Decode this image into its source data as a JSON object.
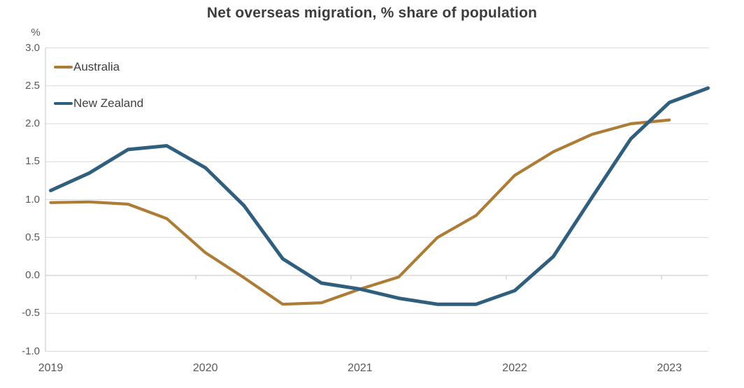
{
  "chart_data": {
    "type": "line",
    "title": "Net overseas migration, % share of population",
    "ylabel": "%",
    "xlabel": "",
    "categories": [
      "2019 Q1",
      "2019 Q2",
      "2019 Q3",
      "2019 Q4",
      "2020 Q1",
      "2020 Q2",
      "2020 Q3",
      "2020 Q4",
      "2021 Q1",
      "2021 Q2",
      "2021 Q3",
      "2021 Q4",
      "2022 Q1",
      "2022 Q2",
      "2022 Q3",
      "2022 Q4",
      "2023 Q1",
      "2023 Q2"
    ],
    "x_year_labels": [
      "2019",
      "2020",
      "2021",
      "2022",
      "2023"
    ],
    "series": [
      {
        "name": "Australia",
        "color": "#ad7d38",
        "values": [
          0.96,
          0.97,
          0.94,
          0.75,
          0.3,
          -0.03,
          -0.38,
          -0.36,
          -0.18,
          -0.02,
          0.5,
          0.79,
          1.32,
          1.63,
          1.86,
          2.0,
          2.05,
          null
        ]
      },
      {
        "name": "New Zealand",
        "color": "#305f7e",
        "values": [
          1.12,
          1.35,
          1.66,
          1.71,
          1.42,
          0.92,
          0.22,
          -0.1,
          -0.18,
          -0.3,
          -0.38,
          -0.38,
          -0.2,
          0.25,
          1.03,
          1.8,
          2.28,
          2.47
        ]
      }
    ],
    "ylim": [
      -1.0,
      3.0
    ],
    "ytick_step": 0.5,
    "ytick_labels": [
      "3.0",
      "2.5",
      "2.0",
      "1.5",
      "1.0",
      "0.5",
      "0.0",
      "-0.5",
      "-1.0"
    ],
    "grid": true,
    "legend_position": "top-left"
  },
  "colors": {
    "title_text": "#3c3c3c",
    "axis_text": "#595959",
    "legend_text": "#404040",
    "gridline": "#d9d9d9",
    "axis_line": "#c6c6c6",
    "background": "#ffffff"
  }
}
